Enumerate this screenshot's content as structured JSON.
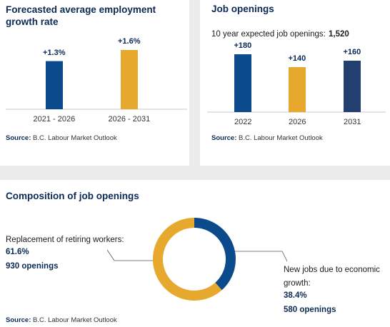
{
  "chart_data": [
    {
      "type": "bar",
      "title": "Forecasted average employment growth rate",
      "categories": [
        "2021 - 2026",
        "2026 - 2031"
      ],
      "values": [
        1.3,
        1.6
      ],
      "value_labels": [
        "+1.3%",
        "+1.6%"
      ],
      "colors": [
        "#0b4a8b",
        "#e6a82d"
      ],
      "source_label": "Source:",
      "source": "B.C. Labour Market Outlook"
    },
    {
      "type": "bar",
      "title": "Job openings",
      "subtitle": "10 year expected job openings:",
      "subtitle_value": "1,520",
      "categories": [
        "2022",
        "2026",
        "2031"
      ],
      "values": [
        180,
        140,
        160
      ],
      "value_labels": [
        "+180",
        "+140",
        "+160"
      ],
      "colors": [
        "#0b4a8b",
        "#e6a82d",
        "#233f70"
      ],
      "source_label": "Source:",
      "source": "B.C. Labour Market Outlook"
    },
    {
      "type": "pie",
      "title": "Composition of job openings",
      "categories": [
        "New jobs due to economic growth:",
        "Replacement of retiring workers:"
      ],
      "values": [
        38.4,
        61.6
      ],
      "value_labels": [
        "38.4%",
        "61.6%"
      ],
      "counts": [
        580,
        930
      ],
      "count_labels": [
        "580 openings",
        "930 openings"
      ],
      "colors": [
        "#0b4a8b",
        "#e6a82d"
      ],
      "source_label": "Source:",
      "source": "B.C. Labour Market Outlook"
    }
  ]
}
